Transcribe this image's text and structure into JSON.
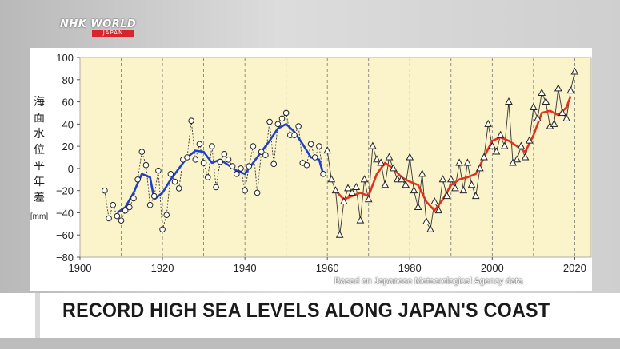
{
  "logo": {
    "brand": "NHK WORLD",
    "sub": "JAPAN"
  },
  "headline": "RECORD HIGH SEA LEVELS ALONG JAPAN'S COAST",
  "source_note": "Based on Japanese Meteorological Agency data",
  "colors": {
    "plot_bg": "#fbf3c9",
    "series_1906_1960_avg": "#1f3fd0",
    "series_1960_2020_avg": "#e0341f",
    "raw_line": "#333333",
    "accent_red": "#d8242b"
  },
  "chart_data": {
    "type": "line",
    "ylabel": "海面水位平年差",
    "yunit": "[mm]",
    "x_ticks": [
      "1900",
      "1920",
      "1940",
      "1960",
      "1980",
      "2000",
      "2020"
    ],
    "y_ticks": [
      "100",
      "80",
      "60",
      "40",
      "20",
      "0",
      "−20",
      "−40",
      "−60",
      "−80"
    ],
    "xlim": [
      1900,
      2024
    ],
    "ylim": [
      -80,
      100
    ],
    "vertical_gridlines_dashed": true,
    "series": [
      {
        "marker": "circle",
        "points": [
          [
            1906,
            -20
          ],
          [
            1907,
            -45
          ],
          [
            1908,
            -33
          ],
          [
            1909,
            -43
          ],
          [
            1910,
            -47
          ],
          [
            1911,
            -38
          ],
          [
            1912,
            -35
          ],
          [
            1913,
            -27
          ],
          [
            1914,
            -10
          ],
          [
            1915,
            15
          ],
          [
            1916,
            3
          ],
          [
            1917,
            -33
          ],
          [
            1918,
            -25
          ],
          [
            1919,
            -2
          ],
          [
            1920,
            -55
          ],
          [
            1921,
            -42
          ],
          [
            1922,
            -5
          ],
          [
            1923,
            -12
          ],
          [
            1924,
            -18
          ],
          [
            1925,
            8
          ],
          [
            1926,
            10
          ],
          [
            1927,
            43
          ],
          [
            1928,
            8
          ],
          [
            1929,
            22
          ],
          [
            1930,
            5
          ],
          [
            1931,
            -8
          ],
          [
            1932,
            20
          ],
          [
            1933,
            -17
          ],
          [
            1934,
            6
          ],
          [
            1935,
            13
          ],
          [
            1936,
            8
          ],
          [
            1937,
            2
          ],
          [
            1938,
            -5
          ],
          [
            1939,
            0
          ],
          [
            1940,
            -20
          ],
          [
            1941,
            2
          ],
          [
            1942,
            20
          ],
          [
            1943,
            -22
          ],
          [
            1944,
            15
          ],
          [
            1945,
            12
          ],
          [
            1946,
            42
          ],
          [
            1947,
            4
          ],
          [
            1948,
            40
          ],
          [
            1949,
            45
          ],
          [
            1950,
            50
          ],
          [
            1951,
            30
          ],
          [
            1952,
            30
          ],
          [
            1953,
            38
          ],
          [
            1954,
            5
          ],
          [
            1955,
            3
          ],
          [
            1956,
            22
          ],
          [
            1957,
            10
          ],
          [
            1958,
            20
          ],
          [
            1959,
            -5
          ]
        ]
      },
      {
        "name_hidden": true,
        "smoothed": [
          [
            1909,
            -40
          ],
          [
            1911,
            -35
          ],
          [
            1913,
            -22
          ],
          [
            1915,
            -5
          ],
          [
            1917,
            -8
          ],
          [
            1918,
            -28
          ],
          [
            1920,
            -22
          ],
          [
            1922,
            -10
          ],
          [
            1924,
            0
          ],
          [
            1926,
            10
          ],
          [
            1928,
            16
          ],
          [
            1930,
            15
          ],
          [
            1932,
            5
          ],
          [
            1934,
            8
          ],
          [
            1936,
            3
          ],
          [
            1938,
            -2
          ],
          [
            1940,
            -5
          ],
          [
            1942,
            5
          ],
          [
            1944,
            15
          ],
          [
            1946,
            25
          ],
          [
            1948,
            36
          ],
          [
            1950,
            40
          ],
          [
            1952,
            33
          ],
          [
            1954,
            22
          ],
          [
            1956,
            10
          ],
          [
            1958,
            8
          ],
          [
            1959,
            -5
          ]
        ]
      },
      {
        "marker": "triangle",
        "points": [
          [
            1960,
            16
          ],
          [
            1961,
            -10
          ],
          [
            1962,
            -20
          ],
          [
            1963,
            -60
          ],
          [
            1964,
            -30
          ],
          [
            1965,
            -18
          ],
          [
            1966,
            -22
          ],
          [
            1967,
            -17
          ],
          [
            1968,
            -47
          ],
          [
            1969,
            -10
          ],
          [
            1970,
            -28
          ],
          [
            1971,
            20
          ],
          [
            1972,
            8
          ],
          [
            1973,
            5
          ],
          [
            1974,
            -15
          ],
          [
            1975,
            10
          ],
          [
            1976,
            0
          ],
          [
            1977,
            -10
          ],
          [
            1978,
            -10
          ],
          [
            1979,
            -15
          ],
          [
            1980,
            10
          ],
          [
            1981,
            -20
          ],
          [
            1982,
            -35
          ],
          [
            1983,
            -5
          ],
          [
            1984,
            -48
          ],
          [
            1985,
            -55
          ],
          [
            1986,
            -30
          ],
          [
            1987,
            -38
          ],
          [
            1988,
            -10
          ],
          [
            1989,
            -25
          ],
          [
            1990,
            -10
          ],
          [
            1991,
            -18
          ],
          [
            1992,
            5
          ],
          [
            1993,
            -20
          ],
          [
            1994,
            5
          ],
          [
            1995,
            -15
          ],
          [
            1996,
            -25
          ],
          [
            1997,
            0
          ],
          [
            1998,
            10
          ],
          [
            1999,
            40
          ],
          [
            2000,
            20
          ],
          [
            2001,
            15
          ],
          [
            2002,
            30
          ],
          [
            2003,
            20
          ],
          [
            2004,
            60
          ],
          [
            2005,
            5
          ],
          [
            2006,
            8
          ],
          [
            2007,
            20
          ],
          [
            2008,
            10
          ],
          [
            2009,
            25
          ],
          [
            2010,
            55
          ],
          [
            2011,
            45
          ],
          [
            2012,
            68
          ],
          [
            2013,
            60
          ],
          [
            2014,
            38
          ],
          [
            2015,
            40
          ],
          [
            2016,
            72
          ],
          [
            2017,
            50
          ],
          [
            2018,
            45
          ],
          [
            2019,
            70
          ],
          [
            2020,
            87
          ]
        ]
      },
      {
        "name_hidden": true,
        "smoothed": [
          [
            1962,
            -20
          ],
          [
            1964,
            -28
          ],
          [
            1966,
            -25
          ],
          [
            1968,
            -22
          ],
          [
            1970,
            -25
          ],
          [
            1972,
            -5
          ],
          [
            1974,
            5
          ],
          [
            1976,
            0
          ],
          [
            1978,
            -8
          ],
          [
            1980,
            -12
          ],
          [
            1982,
            -15
          ],
          [
            1984,
            -30
          ],
          [
            1986,
            -38
          ],
          [
            1988,
            -28
          ],
          [
            1990,
            -15
          ],
          [
            1992,
            -10
          ],
          [
            1994,
            -8
          ],
          [
            1996,
            -5
          ],
          [
            1998,
            10
          ],
          [
            2000,
            25
          ],
          [
            2002,
            28
          ],
          [
            2004,
            25
          ],
          [
            2006,
            20
          ],
          [
            2008,
            15
          ],
          [
            2010,
            30
          ],
          [
            2012,
            50
          ],
          [
            2014,
            52
          ],
          [
            2016,
            48
          ],
          [
            2018,
            55
          ],
          [
            2019,
            65
          ]
        ]
      }
    ]
  }
}
